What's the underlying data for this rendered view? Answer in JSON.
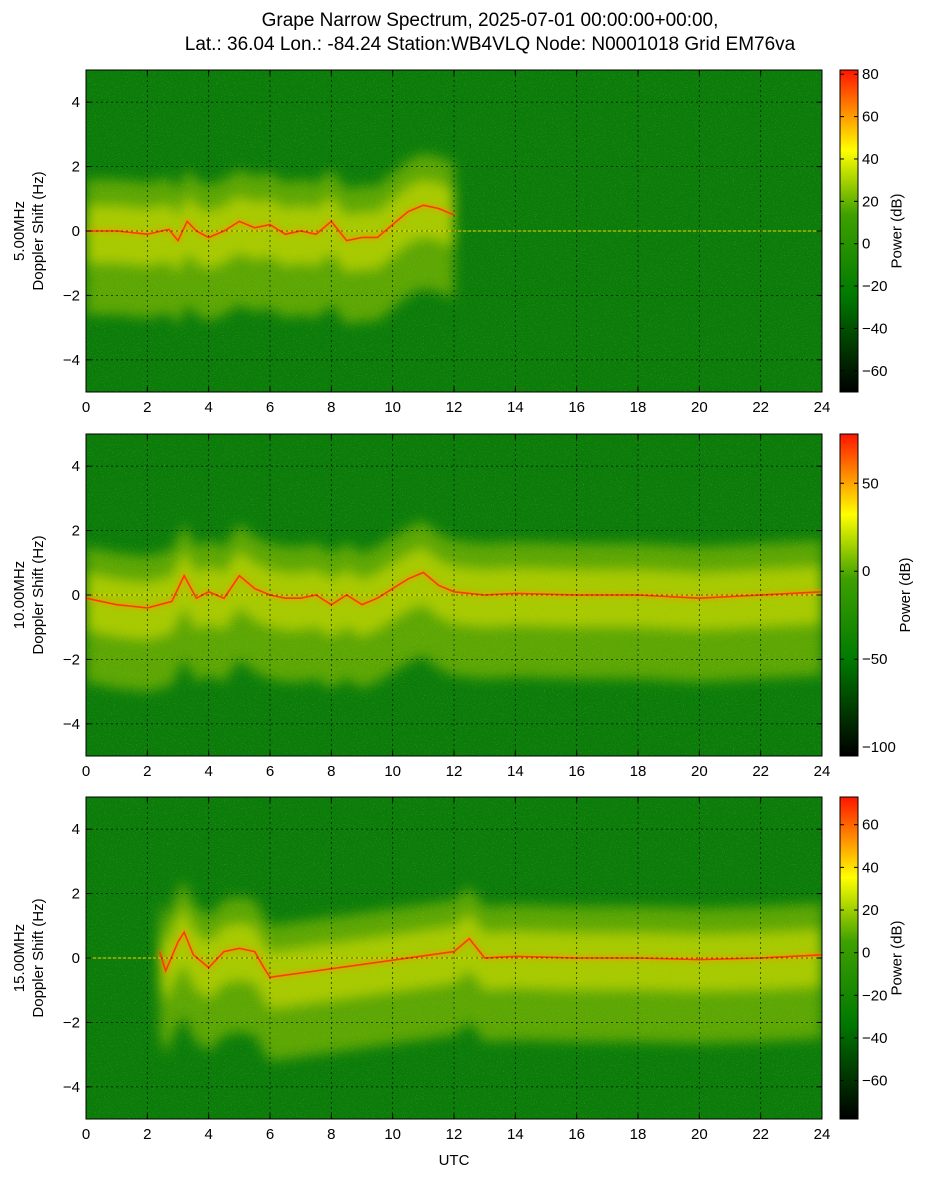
{
  "chart_data": {
    "type": "heatmap",
    "title_lines": [
      "Grape Narrow Spectrum, 2025-07-01 00:00:00+00:00,",
      "Lat.: 36.04 Lon.: -84.24 Station:WB4VLQ Node: N0001018 Grid EM76va"
    ],
    "xlabel": "UTC",
    "grid": true,
    "colormap": [
      "#000000",
      "#008000",
      "#ffff00",
      "#ff0000"
    ],
    "panels": [
      {
        "id": "5mhz",
        "ylabel_lines": [
          "5.00MHz",
          "Doppler Shift (Hz)"
        ],
        "xlim": [
          0,
          24
        ],
        "ylim": [
          -5,
          5
        ],
        "x_ticks": [
          0,
          2,
          4,
          6,
          8,
          10,
          12,
          14,
          16,
          18,
          20,
          22,
          24
        ],
        "y_ticks": [
          -4,
          -2,
          0,
          2,
          4
        ],
        "colorbar": {
          "label": "Power (dB)",
          "range": [
            -70,
            82
          ],
          "ticks": [
            -60,
            -40,
            -20,
            0,
            20,
            40,
            60,
            80
          ]
        },
        "doppler_trace": [
          [
            0.0,
            0.0
          ],
          [
            1.0,
            0.0
          ],
          [
            2.0,
            -0.1
          ],
          [
            2.7,
            0.05
          ],
          [
            3.0,
            -0.3
          ],
          [
            3.3,
            0.3
          ],
          [
            3.6,
            0.0
          ],
          [
            4.0,
            -0.2
          ],
          [
            4.5,
            0.0
          ],
          [
            5.0,
            0.3
          ],
          [
            5.5,
            0.1
          ],
          [
            6.0,
            0.2
          ],
          [
            6.5,
            -0.1
          ],
          [
            7.0,
            0.0
          ],
          [
            7.5,
            -0.1
          ],
          [
            8.0,
            0.3
          ],
          [
            8.5,
            -0.3
          ],
          [
            9.0,
            -0.2
          ],
          [
            9.5,
            -0.2
          ],
          [
            10.0,
            0.2
          ],
          [
            10.5,
            0.6
          ],
          [
            11.0,
            0.8
          ],
          [
            11.5,
            0.7
          ],
          [
            12.0,
            0.5
          ]
        ]
      },
      {
        "id": "10mhz",
        "ylabel_lines": [
          "10.00MHz",
          "Doppler Shift (Hz)"
        ],
        "xlim": [
          0,
          24
        ],
        "ylim": [
          -5,
          5
        ],
        "x_ticks": [
          0,
          2,
          4,
          6,
          8,
          10,
          12,
          14,
          16,
          18,
          20,
          22,
          24
        ],
        "y_ticks": [
          -4,
          -2,
          0,
          2,
          4
        ],
        "colorbar": {
          "label": "Power (dB)",
          "range": [
            -105,
            78
          ],
          "ticks": [
            -100,
            -50,
            0,
            50
          ]
        },
        "doppler_trace": [
          [
            0.0,
            -0.1
          ],
          [
            1.0,
            -0.3
          ],
          [
            2.0,
            -0.4
          ],
          [
            2.8,
            -0.2
          ],
          [
            3.2,
            0.6
          ],
          [
            3.6,
            -0.1
          ],
          [
            4.0,
            0.1
          ],
          [
            4.5,
            -0.1
          ],
          [
            5.0,
            0.6
          ],
          [
            5.5,
            0.2
          ],
          [
            6.0,
            0.0
          ],
          [
            6.5,
            -0.1
          ],
          [
            7.0,
            -0.1
          ],
          [
            7.5,
            0.0
          ],
          [
            8.0,
            -0.3
          ],
          [
            8.5,
            0.0
          ],
          [
            9.0,
            -0.3
          ],
          [
            9.5,
            -0.1
          ],
          [
            10.0,
            0.2
          ],
          [
            10.5,
            0.5
          ],
          [
            11.0,
            0.7
          ],
          [
            11.5,
            0.3
          ],
          [
            12.0,
            0.1
          ],
          [
            13.0,
            0.0
          ],
          [
            14.0,
            0.05
          ],
          [
            16.0,
            0.0
          ],
          [
            18.0,
            0.0
          ],
          [
            20.0,
            -0.1
          ],
          [
            22.0,
            0.0
          ],
          [
            24.0,
            0.1
          ]
        ]
      },
      {
        "id": "15mhz",
        "ylabel_lines": [
          "15.00MHz",
          "Doppler Shift (Hz)"
        ],
        "xlim": [
          0,
          24
        ],
        "ylim": [
          -5,
          5
        ],
        "x_ticks": [
          0,
          2,
          4,
          6,
          8,
          10,
          12,
          14,
          16,
          18,
          20,
          22,
          24
        ],
        "y_ticks": [
          -4,
          -2,
          0,
          2,
          4
        ],
        "colorbar": {
          "label": "Power (dB)",
          "range": [
            -78,
            73
          ],
          "ticks": [
            -60,
            -40,
            -20,
            0,
            20,
            40,
            60
          ]
        },
        "doppler_trace": [
          [
            2.4,
            0.2
          ],
          [
            2.6,
            -0.4
          ],
          [
            3.0,
            0.5
          ],
          [
            3.2,
            0.8
          ],
          [
            3.5,
            0.1
          ],
          [
            4.0,
            -0.3
          ],
          [
            4.5,
            0.2
          ],
          [
            5.0,
            0.3
          ],
          [
            5.5,
            0.2
          ],
          [
            5.8,
            -0.3
          ],
          [
            6.0,
            -0.6
          ],
          [
            12.0,
            0.2
          ],
          [
            12.5,
            0.6
          ],
          [
            13.0,
            0.0
          ],
          [
            14.0,
            0.05
          ],
          [
            16.0,
            0.0
          ],
          [
            18.0,
            0.0
          ],
          [
            20.0,
            -0.05
          ],
          [
            22.0,
            0.0
          ],
          [
            24.0,
            0.1
          ]
        ]
      }
    ]
  }
}
